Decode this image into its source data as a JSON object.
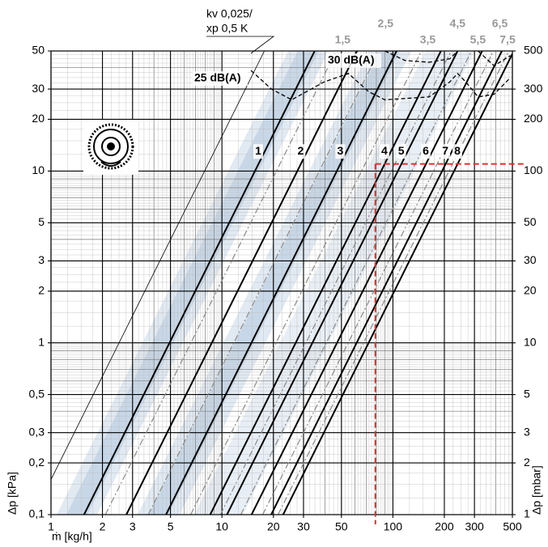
{
  "chart_data": {
    "type": "line",
    "x_label": "ṁ [kg/h]",
    "y_label": "Δp [kPa]",
    "y2_label": "Δp [mbar]",
    "log_x": true,
    "log_y": true,
    "grid": true,
    "xlim": [
      1,
      500
    ],
    "xticks": [
      1,
      2,
      3,
      5,
      10,
      20,
      30,
      50,
      100,
      200,
      300,
      500
    ],
    "ylim": [
      0.1,
      50
    ],
    "yticks": [
      {
        "value": 0.1,
        "label": "0,1"
      },
      {
        "value": 0.2,
        "label": "0,2"
      },
      {
        "value": 0.3,
        "label": "0,3"
      },
      {
        "value": 0.5,
        "label": "0,5"
      },
      1,
      2,
      3,
      5,
      10,
      20,
      30,
      50
    ],
    "y2lim": [
      1,
      500
    ],
    "y2ticks": [
      1,
      2,
      3,
      5,
      10,
      20,
      30,
      50,
      100,
      200,
      300,
      500
    ],
    "series": [
      {
        "color": "#000000",
        "width": 0.8,
        "dashed": false,
        "x": [
          1,
          17.7
        ],
        "values": [
          0.16,
          50
        ]
      },
      {
        "name": "1",
        "color": "#000000",
        "width": 2,
        "dashed": false,
        "x": [
          1.56,
          34.9
        ],
        "values": [
          0.1,
          50
        ]
      },
      {
        "name": "2",
        "color": "#000000",
        "width": 2,
        "dashed": false,
        "x": [
          2.76,
          61.7
        ],
        "values": [
          0.1,
          50
        ]
      },
      {
        "name": "3",
        "color": "#000000",
        "width": 2,
        "dashed": false,
        "x": [
          4.71,
          105
        ],
        "values": [
          0.1,
          50
        ]
      },
      {
        "name": "4",
        "color": "#000000",
        "width": 2,
        "dashed": false,
        "x": [
          8.54,
          191
        ],
        "values": [
          0.1,
          50
        ]
      },
      {
        "name": "5",
        "color": "#000000",
        "width": 2,
        "dashed": false,
        "x": [
          10.7,
          239
        ],
        "values": [
          0.1,
          50
        ]
      },
      {
        "name": "6",
        "color": "#000000",
        "width": 2,
        "dashed": false,
        "x": [
          14.9,
          333
        ],
        "values": [
          0.1,
          50
        ]
      },
      {
        "name": "7",
        "color": "#000000",
        "width": 2,
        "dashed": false,
        "x": [
          19.4,
          434
        ],
        "values": [
          0.1,
          50
        ]
      },
      {
        "name": "8",
        "color": "#000000",
        "width": 2,
        "dashed": false,
        "x": [
          22.8,
          500
        ],
        "values": [
          0.1,
          48.1
        ]
      },
      {
        "name": "1,5",
        "color": "#8a8a8a",
        "width": 1.2,
        "dashed": true,
        "x": [
          2.08,
          46.6
        ],
        "values": [
          0.1,
          50
        ]
      },
      {
        "name": "2,5",
        "color": "#8a8a8a",
        "width": 1.2,
        "dashed": true,
        "x": [
          3.71,
          83
        ],
        "values": [
          0.1,
          50
        ]
      },
      {
        "name": "3,5",
        "color": "#8a8a8a",
        "width": 1.2,
        "dashed": true,
        "x": [
          6.56,
          146.6
        ],
        "values": [
          0.1,
          50
        ]
      },
      {
        "name": "4,5",
        "color": "#8a8a8a",
        "width": 1.2,
        "dashed": true,
        "x": [
          9.8,
          219
        ],
        "values": [
          0.1,
          50
        ]
      },
      {
        "name": "5,5",
        "color": "#8a8a8a",
        "width": 1.2,
        "dashed": true,
        "x": [
          12.9,
          288
        ],
        "values": [
          0.1,
          50
        ]
      },
      {
        "name": "6,5",
        "color": "#8a8a8a",
        "width": 1.2,
        "dashed": true,
        "x": [
          17.3,
          387
        ],
        "values": [
          0.1,
          50
        ]
      },
      {
        "name": "7,5",
        "color": "#8a8a8a",
        "width": 1.2,
        "dashed": true,
        "x": [
          21.3,
          476
        ],
        "values": [
          0.1,
          50
        ]
      }
    ],
    "noise_curves": [
      {
        "name": "25 dB(A)",
        "color": "#000000",
        "x": [
          14.8,
          19.5,
          25.6,
          39.5,
          54.9,
          72,
          89.7,
          163,
          215,
          239,
          267,
          315,
          391,
          487
        ],
        "values": [
          38.5,
          30,
          26,
          33,
          37,
          29,
          26,
          27,
          33,
          37,
          33,
          27,
          28,
          35
        ]
      },
      {
        "name": "30 dB(A)",
        "color": "#000000",
        "x": [
          89.7,
          118,
          163,
          215,
          239,
          null,
          315,
          391,
          487
        ],
        "values": [
          50,
          44,
          43,
          45,
          50,
          null,
          50,
          41,
          47
        ]
      }
    ],
    "thin_line_label": [
      "kv 0,025/",
      "xp 0,5 K"
    ],
    "marker": {
      "x": 79,
      "y": 11,
      "color": "#e03030"
    }
  }
}
